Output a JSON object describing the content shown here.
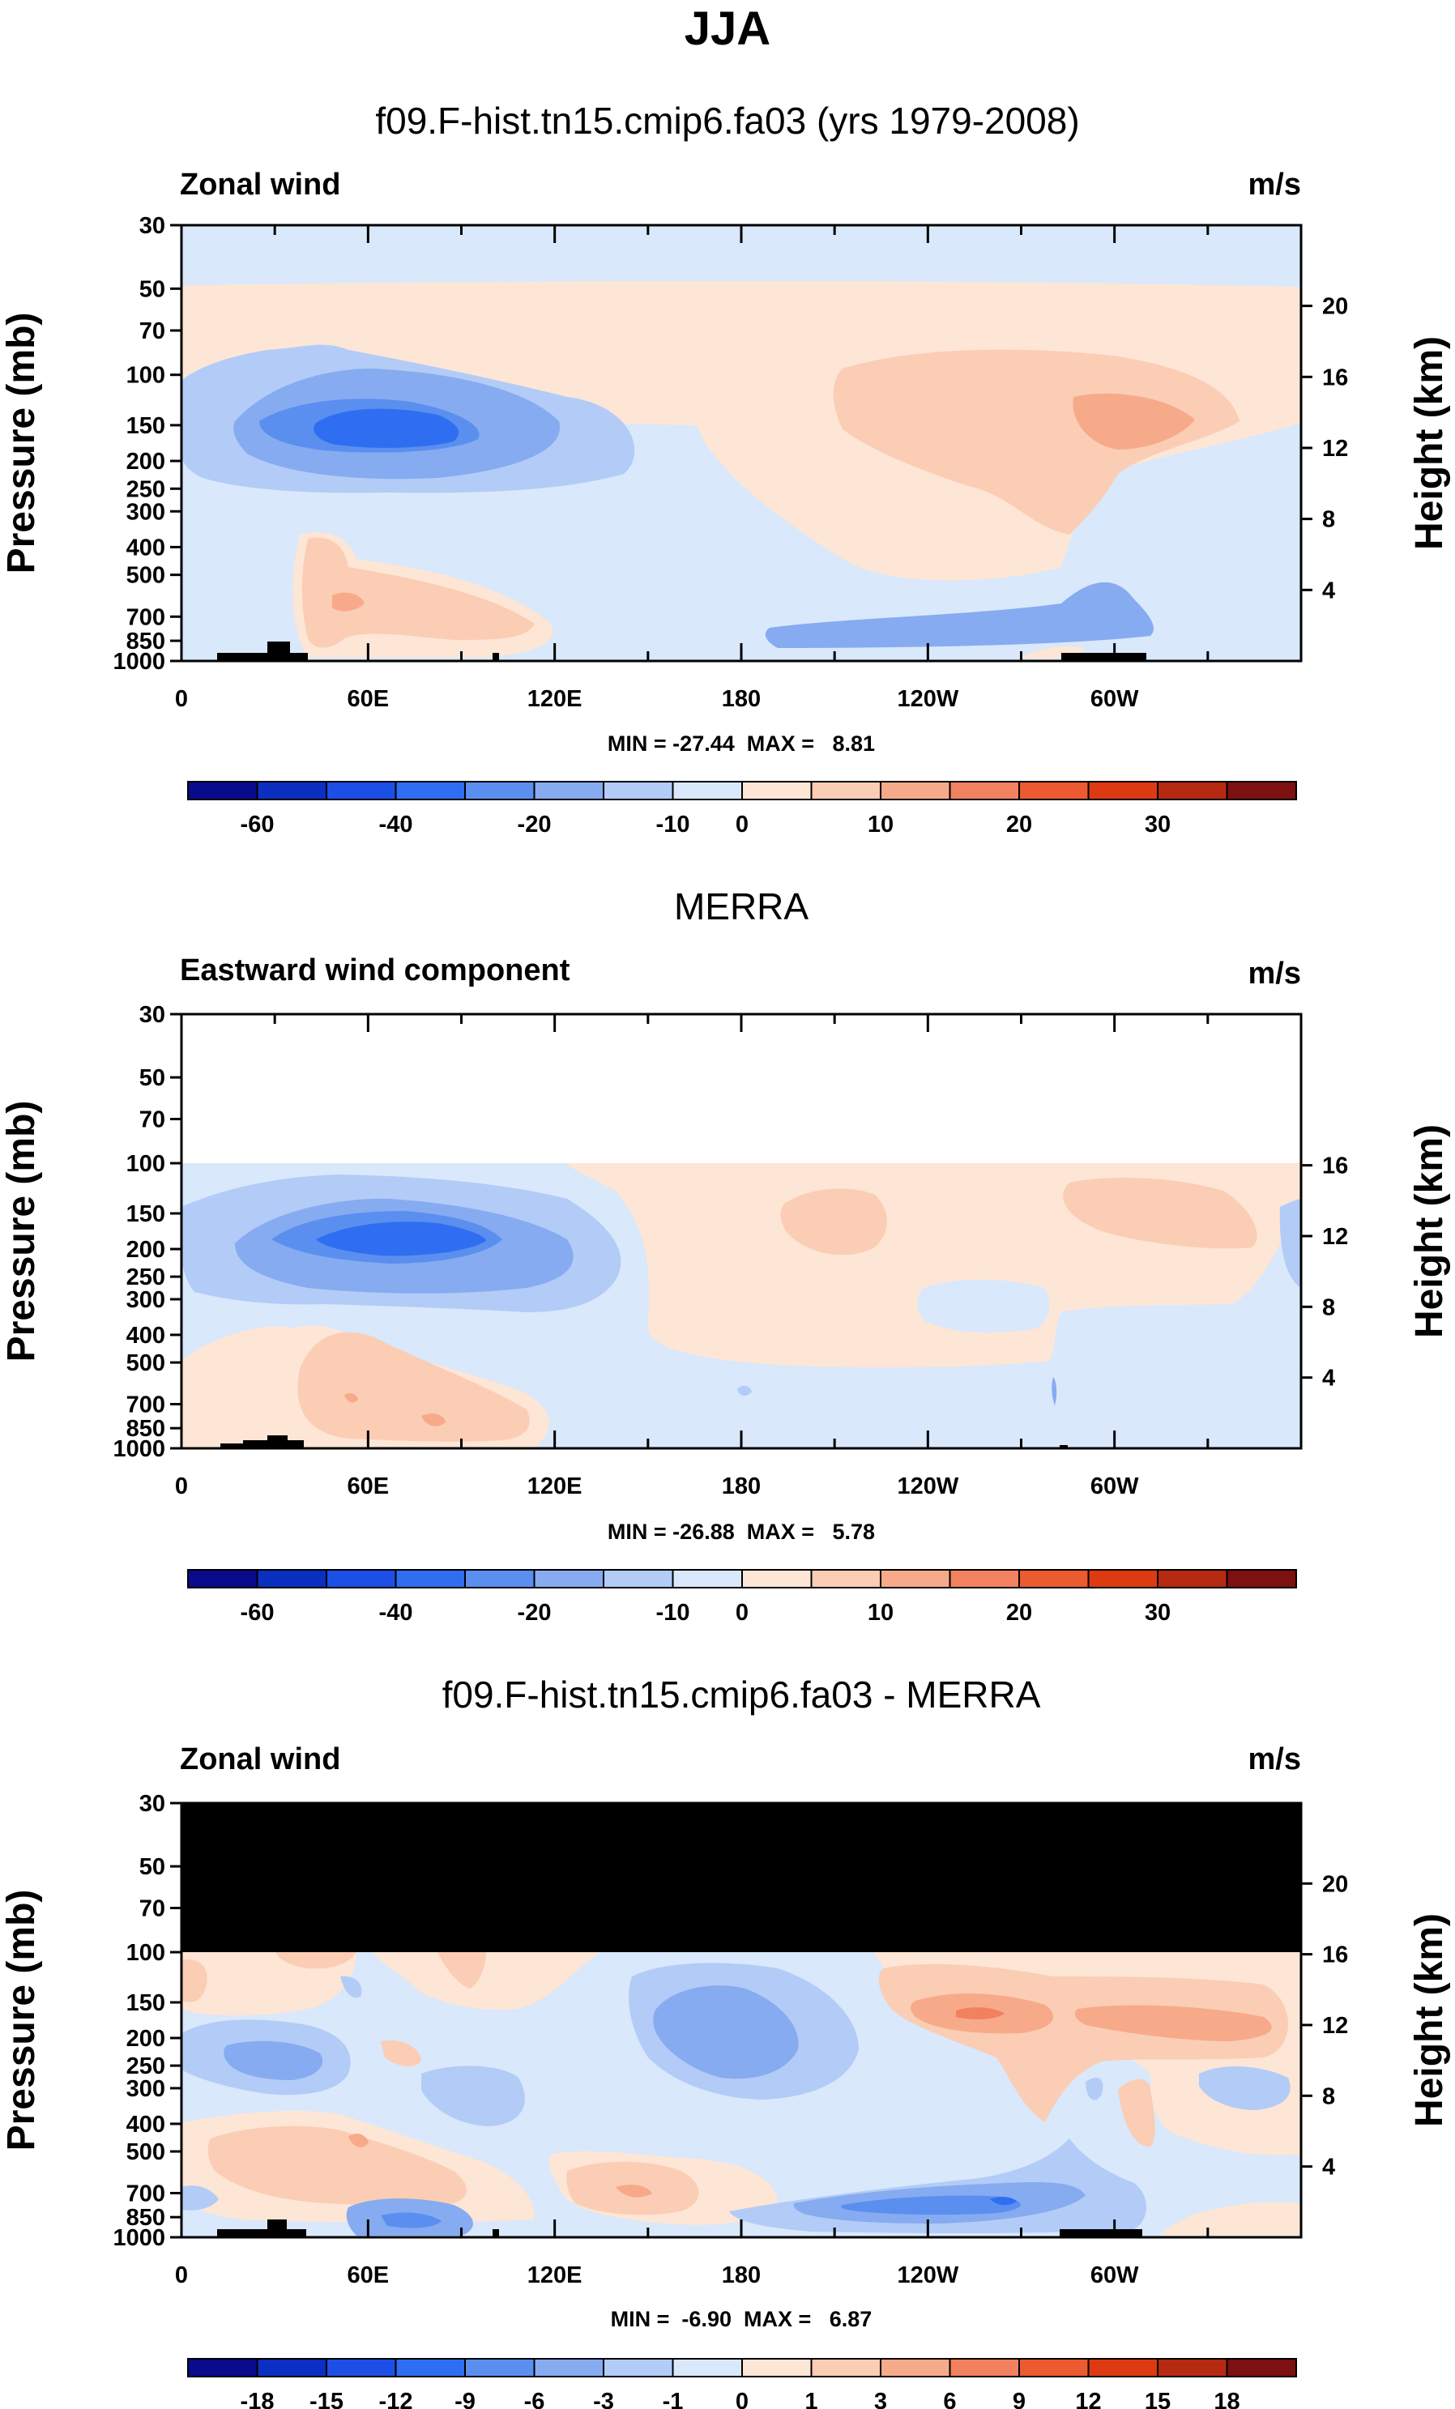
{
  "figure": {
    "title": "JJA"
  },
  "chart_data": [
    {
      "type": "heatmap",
      "title": "f09.F-hist.tn15.cmip6.fa03 (yrs 1979-2008)",
      "left_label": "Zonal wind",
      "right_label": "m/s",
      "ylabel": "Pressure (mb)",
      "y2label": "Height (km)",
      "xlabel": "",
      "xticks": [
        "0",
        "60E",
        "120E",
        "180",
        "120W",
        "60W"
      ],
      "yticks": [
        "30",
        "50",
        "70",
        "100",
        "150",
        "200",
        "250",
        "300",
        "400",
        "500",
        "700",
        "850",
        "1000"
      ],
      "y2ticks": [
        "20",
        "16",
        "12",
        "8",
        "4"
      ],
      "stats": "MIN = -27.44  MAX =   8.81",
      "min": -27.44,
      "max": 8.81,
      "colorbar_ticks": [
        "-60",
        "-40",
        "-20",
        "-10",
        "0",
        "10",
        "20",
        "30"
      ]
    },
    {
      "type": "heatmap",
      "title": "MERRA",
      "left_label": "Eastward wind component",
      "right_label": "m/s",
      "ylabel": "Pressure (mb)",
      "y2label": "Height (km)",
      "xlabel": "",
      "xticks": [
        "0",
        "60E",
        "120E",
        "180",
        "120W",
        "60W"
      ],
      "yticks": [
        "30",
        "50",
        "70",
        "100",
        "150",
        "200",
        "250",
        "300",
        "400",
        "500",
        "700",
        "850",
        "1000"
      ],
      "y2ticks": [
        "16",
        "12",
        "8",
        "4"
      ],
      "stats": "MIN = -26.88  MAX =   5.78",
      "min": -26.88,
      "max": 5.78,
      "colorbar_ticks": [
        "-60",
        "-40",
        "-20",
        "-10",
        "0",
        "10",
        "20",
        "30"
      ]
    },
    {
      "type": "heatmap",
      "title": "f09.F-hist.tn15.cmip6.fa03 - MERRA",
      "left_label": "Zonal wind",
      "right_label": "m/s",
      "ylabel": "Pressure (mb)",
      "y2label": "Height (km)",
      "xlabel": "",
      "xticks": [
        "0",
        "60E",
        "120E",
        "180",
        "120W",
        "60W"
      ],
      "yticks": [
        "30",
        "50",
        "70",
        "100",
        "150",
        "200",
        "250",
        "300",
        "400",
        "500",
        "700",
        "850",
        "1000"
      ],
      "y2ticks": [
        "20",
        "16",
        "12",
        "8",
        "4"
      ],
      "stats": "MIN =  -6.90  MAX =   6.87",
      "min": -6.9,
      "max": 6.87,
      "colorbar_ticks": [
        "-18",
        "-15",
        "-12",
        "-9",
        "-6",
        "-3",
        "-1",
        "0",
        "1",
        "3",
        "6",
        "9",
        "12",
        "15",
        "18"
      ]
    }
  ],
  "colorbar_colors": [
    "#0a0a8c",
    "#0b2fc0",
    "#1b4fe6",
    "#2f6ef0",
    "#5a8ff0",
    "#86abf0",
    "#b2ccf7",
    "#d9e8fb",
    "#fde6d6",
    "#fbcdb4",
    "#f7aa8a",
    "#f28160",
    "#ec5a30",
    "#dd3a12",
    "#b52a10",
    "#7d1010"
  ],
  "fill_colors": {
    "light_blue": "#d9e8fb",
    "pale_blue": "#b2ccf7",
    "mid_blue": "#86abf0",
    "blue": "#5a8ff0",
    "light_orange": "#fde6d6",
    "orange": "#fbcdb4",
    "dark_orange": "#f7aa8a",
    "red_orange": "#f28160",
    "terrain": "#000000"
  }
}
